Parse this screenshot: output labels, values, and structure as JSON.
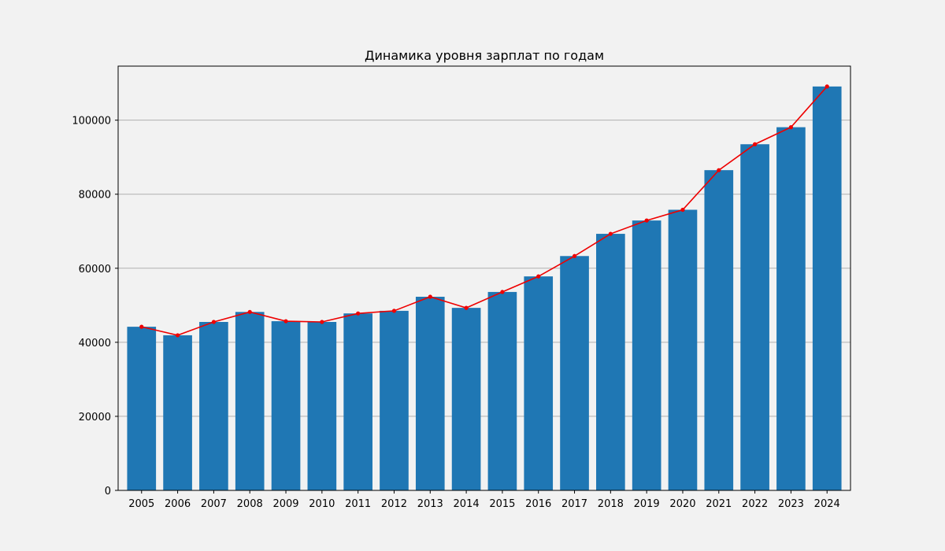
{
  "colors": {
    "figure_background": "#f2f2f2",
    "plot_background": "#f2f2f2",
    "bar": "#1f77b4",
    "line": "#ee0000",
    "grid": "#b0b0b0",
    "axes": "#000000"
  },
  "chart_data": {
    "type": "bar",
    "title": "Динамика уровня зарплат по годам",
    "xlabel": "",
    "ylabel": "",
    "categories": [
      "2005",
      "2006",
      "2007",
      "2008",
      "2009",
      "2010",
      "2011",
      "2012",
      "2013",
      "2014",
      "2015",
      "2016",
      "2017",
      "2018",
      "2019",
      "2020",
      "2021",
      "2022",
      "2023",
      "2024"
    ],
    "series": [
      {
        "kind": "bar",
        "values": [
          44200,
          41900,
          45500,
          48200,
          45700,
          45500,
          47800,
          48500,
          52300,
          49300,
          53600,
          57800,
          63300,
          69300,
          72900,
          75800,
          86500,
          93500,
          98100,
          109100
        ]
      },
      {
        "kind": "line",
        "marker": "dot",
        "values": [
          44200,
          41900,
          45500,
          48200,
          45700,
          45500,
          47800,
          48500,
          52300,
          49300,
          53600,
          57800,
          63300,
          69300,
          72900,
          75800,
          86500,
          93500,
          98100,
          109100
        ]
      }
    ],
    "yticks": [
      "0",
      "20000",
      "40000",
      "60000",
      "80000",
      "100000"
    ],
    "ylim": [
      0,
      114600
    ],
    "grid": "horizontal",
    "legend": "none"
  }
}
